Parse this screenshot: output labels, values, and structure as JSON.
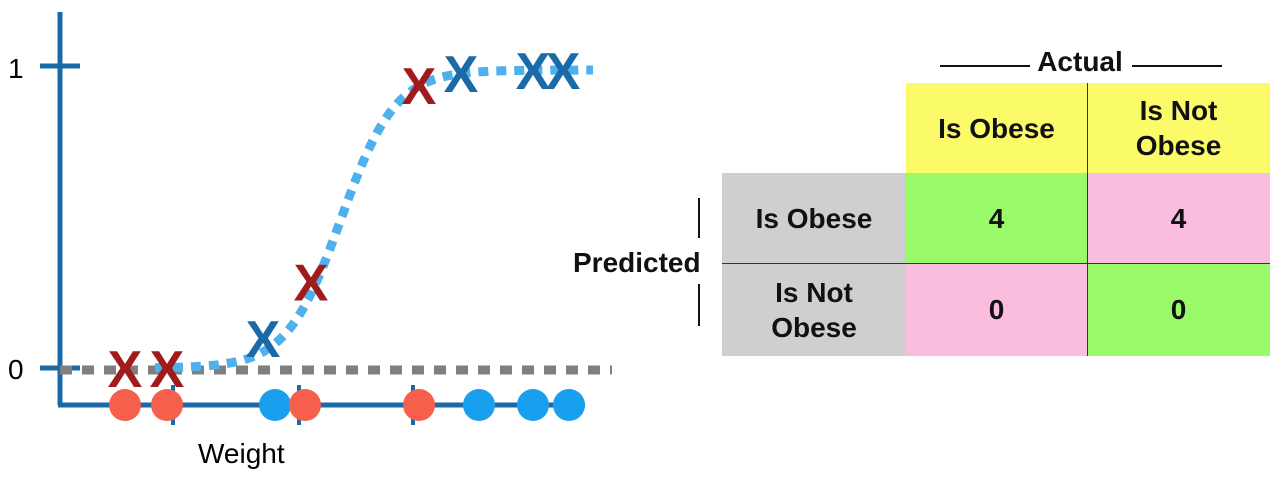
{
  "plot": {
    "y_tick_top": "1",
    "y_tick_bottom": "0",
    "x_label": "Weight",
    "colors": {
      "axis": "#1a6aa8",
      "curve": "#4fb0ee",
      "dashed_baseline": "#7f7f7f",
      "obese": "#a01c1c",
      "not_obese": "#1a6aa8",
      "dot_red": "#f65f4c",
      "dot_blue": "#18a0ef"
    },
    "predictions": [
      {
        "weight": 1.0,
        "prob": 0.0,
        "class": "obese"
      },
      {
        "weight": 1.7,
        "prob": 0.0,
        "class": "obese"
      },
      {
        "weight": 3.3,
        "prob": 0.1,
        "class": "not_obese"
      },
      {
        "weight": 4.1,
        "prob": 0.29,
        "class": "obese"
      },
      {
        "weight": 5.9,
        "prob": 0.95,
        "class": "obese"
      },
      {
        "weight": 6.6,
        "prob": 0.99,
        "class": "not_obese"
      },
      {
        "weight": 7.8,
        "prob": 1.0,
        "class": "not_obese"
      },
      {
        "weight": 8.3,
        "prob": 1.0,
        "class": "not_obese"
      }
    ],
    "dots": [
      {
        "weight": 1.0,
        "color": "red"
      },
      {
        "weight": 1.7,
        "color": "red"
      },
      {
        "weight": 3.5,
        "color": "blue"
      },
      {
        "weight": 4.0,
        "color": "red"
      },
      {
        "weight": 5.9,
        "color": "red"
      },
      {
        "weight": 6.9,
        "color": "blue"
      },
      {
        "weight": 7.8,
        "color": "blue"
      },
      {
        "weight": 8.4,
        "color": "blue"
      }
    ],
    "thresholds": [
      1.8,
      3.9,
      5.8
    ]
  },
  "matrix": {
    "actual_label": "Actual",
    "predicted_label": "Predicted",
    "col_headers": [
      "Is Obese",
      "Is Not\nObese"
    ],
    "row_headers": [
      "Is Obese",
      "Is Not\nObese"
    ],
    "cells": [
      [
        "4",
        "4"
      ],
      [
        "0",
        "0"
      ]
    ]
  }
}
